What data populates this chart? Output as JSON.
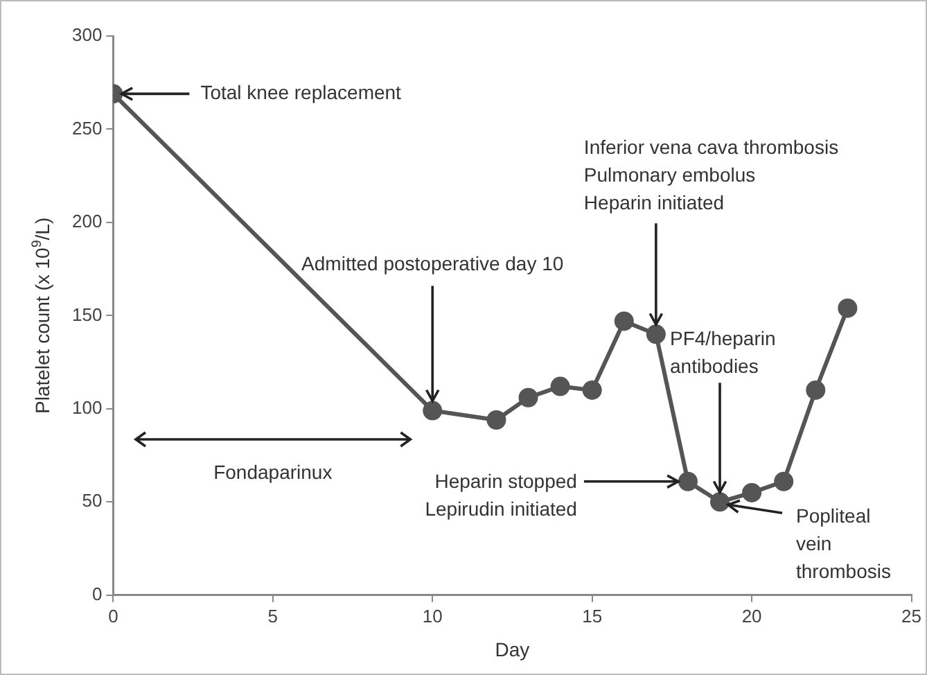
{
  "chart_data": {
    "type": "line",
    "xlabel": "Day",
    "ylabel": "Platelet count (x 10$^{9}$/L)",
    "x": [
      0,
      10,
      12,
      13,
      14,
      15,
      16,
      17,
      18,
      19,
      20,
      21,
      22,
      23
    ],
    "series": [
      {
        "color": "#555555",
        "values": [
          269,
          99,
          94,
          106,
          112,
          110,
          147,
          140,
          61,
          50,
          55,
          61,
          110,
          154
        ]
      }
    ],
    "xlim": [
      0,
      25
    ],
    "xticks": [
      0,
      5,
      10,
      15,
      20,
      25
    ],
    "ylim": [
      0,
      300
    ],
    "yticks": [
      0,
      50,
      100,
      150,
      200,
      250,
      300
    ],
    "grid": false,
    "legend": false,
    "marker": "circle",
    "line_style": "solid",
    "annotations": [
      "Fondaparinux",
      {
        "text": "Total knee replacement",
        "x": 0,
        "y": 269
      },
      {
        "text": "Admitted postoperative day 10",
        "x": 10,
        "y": 99
      },
      {
        "text": "Inferior vena cava thrombosis\nPulmonary embolus\nHeparin initiated",
        "x": 17,
        "y": 140
      },
      {
        "text": "PF4/heparin\nantibodies",
        "x": 19,
        "y": 50
      },
      {
        "text": "Heparin stopped\nLepirudin initiated",
        "x": 18,
        "y": 61
      },
      {
        "text": "Popliteal\nvein\nthrombosis",
        "x": 19,
        "y": 50
      }
    ]
  }
}
